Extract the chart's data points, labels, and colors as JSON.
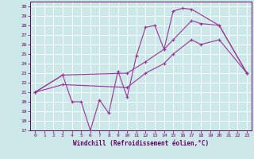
{
  "background_color": "#cce8e8",
  "grid_color": "#ffffff",
  "line_color": "#993399",
  "marker": "+",
  "xlabel": "Windchill (Refroidissement éolien,°C)",
  "xlabel_color": "#660066",
  "tick_color": "#660066",
  "xlim": [
    -0.5,
    23.5
  ],
  "ylim": [
    17,
    30.5
  ],
  "xticks": [
    0,
    1,
    2,
    3,
    4,
    5,
    6,
    7,
    8,
    9,
    10,
    11,
    12,
    13,
    14,
    15,
    16,
    17,
    18,
    19,
    20,
    21,
    22,
    23
  ],
  "yticks": [
    17,
    18,
    19,
    20,
    21,
    22,
    23,
    24,
    25,
    26,
    27,
    28,
    29,
    30
  ],
  "curve1_x": [
    0,
    3,
    4,
    5,
    6,
    7,
    8,
    9,
    10,
    11,
    12,
    13,
    14,
    15,
    16,
    17,
    20,
    23
  ],
  "curve1_y": [
    21.0,
    22.8,
    20.0,
    20.0,
    17.0,
    20.2,
    18.8,
    23.2,
    20.5,
    24.8,
    27.8,
    28.0,
    25.5,
    29.5,
    29.8,
    29.7,
    28.0,
    23.0
  ],
  "curve2_x": [
    0,
    3,
    10,
    12,
    14,
    15,
    17,
    18,
    20,
    23
  ],
  "curve2_y": [
    21.0,
    22.8,
    23.0,
    24.2,
    25.5,
    26.5,
    28.5,
    28.2,
    28.0,
    23.0
  ],
  "curve3_x": [
    0,
    3,
    10,
    12,
    14,
    15,
    17,
    18,
    20,
    23
  ],
  "curve3_y": [
    21.0,
    21.8,
    21.5,
    23.0,
    24.0,
    25.0,
    26.5,
    26.0,
    26.5,
    23.0
  ]
}
